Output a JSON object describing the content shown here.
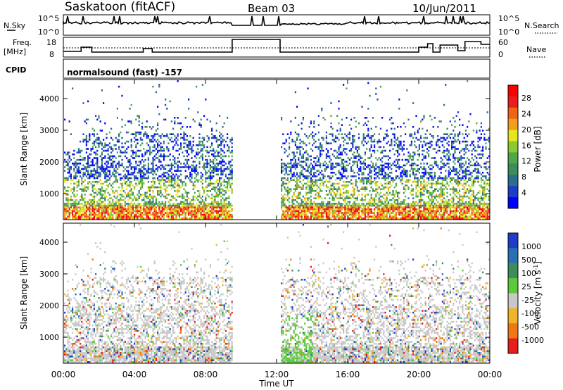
{
  "header": {
    "station": "Saskatoon (fitACF)",
    "beam": "Beam 03",
    "date": "10/Jun/2011"
  },
  "left_labels": {
    "nsky": "N.Sky",
    "freq_line1": "Freq.",
    "freq_line2": "[MHz]",
    "cpid": "CPID"
  },
  "right_labels": {
    "nsearch": "N.Search",
    "nave": "Nave"
  },
  "noise_panel": {
    "ticks_left": [
      "10^5",
      "10^0"
    ],
    "ticks_right": [
      "10^5",
      "10^0"
    ]
  },
  "freq_panel": {
    "ticks_left": [
      "18",
      "8"
    ],
    "ticks_right": [
      "60",
      "0"
    ]
  },
  "cpid_text": "normalsound (fast) -157",
  "chart_data": [
    {
      "type": "heatmap",
      "name": "power",
      "ylabel": "Slant Range [km]",
      "yticks": [
        "1000",
        "2000",
        "3000",
        "4000"
      ],
      "ylim": [
        180,
        4600
      ],
      "colorbar_label": "Power [dB]",
      "colorbar_ticks": [
        "4",
        "8",
        "12",
        "16",
        "20",
        "24",
        "28"
      ],
      "colorbar_range": [
        0,
        30
      ],
      "colors": [
        "#0000ff",
        "#1e3cc8",
        "#2a6e8c",
        "#3d8c5a",
        "#4ca84a",
        "#8cc832",
        "#e6e61e",
        "#f0a01e",
        "#f06414",
        "#e61e1e",
        "#ff0000"
      ],
      "data_gap_hours": [
        9.5,
        12.2
      ]
    },
    {
      "type": "heatmap",
      "name": "velocity",
      "ylabel": "Slant Range [km]",
      "yticks": [
        "1000",
        "2000",
        "3000",
        "4000"
      ],
      "ylim": [
        180,
        4600
      ],
      "colorbar_label": "Velocity [m s^-1]",
      "colorbar_ticks": [
        "1000",
        "500",
        "100",
        "25",
        "-25",
        "-100",
        "-500",
        "-1000"
      ],
      "colors": [
        "#1e3cc8",
        "#2a6eb4",
        "#3d8c5a",
        "#5cc83c",
        "#c8c8c8",
        "#f0b428",
        "#f07814",
        "#e61e1e"
      ],
      "data_gap_hours": [
        9.5,
        12.2
      ]
    }
  ],
  "xaxis": {
    "label": "Time UT",
    "ticks": [
      "00:00",
      "04:00",
      "08:00",
      "12:00",
      "16:00",
      "20:00",
      "00:00"
    ]
  }
}
